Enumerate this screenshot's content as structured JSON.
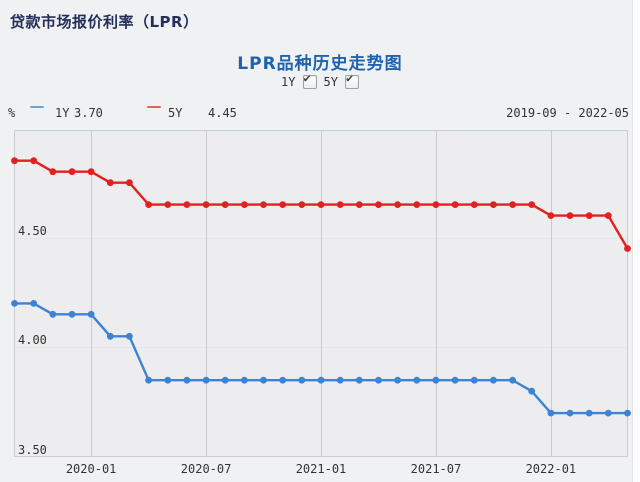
{
  "header": {
    "title": "贷款市场报价利率（LPR）"
  },
  "chart": {
    "title": "LPR品种历史走势图",
    "y_unit": "%",
    "date_range": "2019-09 - 2022-05"
  },
  "controls": {
    "check_glyph": "✔",
    "toggles": [
      {
        "label": "1Y",
        "checked": true
      },
      {
        "label": "5Y",
        "checked": true
      }
    ]
  },
  "legend": {
    "items": [
      {
        "label": "1Y",
        "value": "3.70",
        "color": "#6fa3d2"
      },
      {
        "label": "5Y",
        "value": "4.45",
        "color": "#e0645e"
      }
    ]
  },
  "colors": {
    "page_bg": "#f0f1f3",
    "plot_bg": "#ededef",
    "plot_border": "#c9ced4",
    "v_grid": "#c6cbd1",
    "h_grid": "#e2e5e9",
    "series_1y": "#3e82d4",
    "series_5y": "#e32020",
    "title_blue": "#1f63ae",
    "header_navy": "#25305a"
  },
  "chart_data": {
    "type": "line",
    "title": "LPR品种历史走势图",
    "x": [
      "2019-09",
      "2019-10",
      "2019-11",
      "2019-12",
      "2020-01",
      "2020-02",
      "2020-03",
      "2020-04",
      "2020-05",
      "2020-06",
      "2020-07",
      "2020-08",
      "2020-09",
      "2020-10",
      "2020-11",
      "2020-12",
      "2021-01",
      "2021-02",
      "2021-03",
      "2021-04",
      "2021-05",
      "2021-06",
      "2021-07",
      "2021-08",
      "2021-09",
      "2021-10",
      "2021-11",
      "2021-12",
      "2022-01",
      "2022-02",
      "2022-03",
      "2022-04",
      "2022-05"
    ],
    "series": [
      {
        "name": "1Y",
        "color": "#3e82d4",
        "values": [
          4.2,
          4.2,
          4.15,
          4.15,
          4.15,
          4.05,
          4.05,
          3.85,
          3.85,
          3.85,
          3.85,
          3.85,
          3.85,
          3.85,
          3.85,
          3.85,
          3.85,
          3.85,
          3.85,
          3.85,
          3.85,
          3.85,
          3.85,
          3.85,
          3.85,
          3.85,
          3.85,
          3.8,
          3.7,
          3.7,
          3.7,
          3.7,
          3.7
        ]
      },
      {
        "name": "5Y",
        "color": "#e32020",
        "values": [
          4.85,
          4.85,
          4.8,
          4.8,
          4.8,
          4.75,
          4.75,
          4.65,
          4.65,
          4.65,
          4.65,
          4.65,
          4.65,
          4.65,
          4.65,
          4.65,
          4.65,
          4.65,
          4.65,
          4.65,
          4.65,
          4.65,
          4.65,
          4.65,
          4.65,
          4.65,
          4.65,
          4.65,
          4.6,
          4.6,
          4.6,
          4.6,
          4.45
        ]
      }
    ],
    "x_tick_indices": [
      4,
      10,
      16,
      22,
      28
    ],
    "x_tick_labels": [
      "2020-01",
      "2020-07",
      "2021-01",
      "2021-07",
      "2022-01"
    ],
    "y_ticks": [
      4.5,
      4.0,
      3.5
    ],
    "y_tick_labels": [
      "4.50",
      "4.00",
      "3.50"
    ],
    "ylim": [
      3.5,
      4.99
    ],
    "xlabel": "",
    "ylabel": "%",
    "grid": true,
    "legend_position": "top"
  }
}
